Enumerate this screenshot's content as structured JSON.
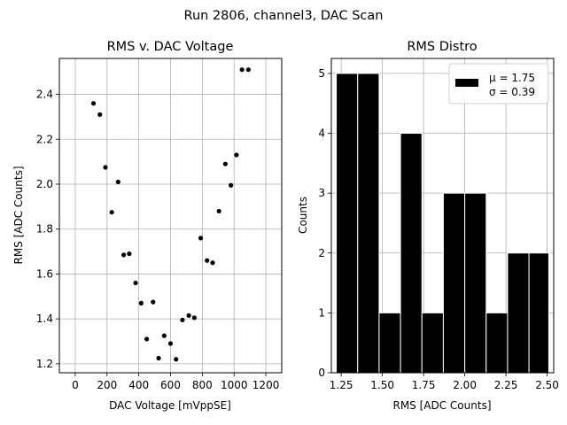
{
  "suptitle": "Run 2806, channel3, DAC Scan",
  "chart_data": [
    {
      "type": "scatter",
      "title": "RMS v. DAC Voltage",
      "xlabel": "DAC Voltage [mVppSE]",
      "ylabel": "RMS [ADC Counts]",
      "xlim": [
        -100,
        1300
      ],
      "ylim": [
        1.16,
        2.56
      ],
      "xticks": [
        0,
        200,
        400,
        600,
        800,
        1000,
        1200
      ],
      "xtick_labels": [
        "0",
        "200",
        "400",
        "600",
        "800",
        "1000",
        "1200"
      ],
      "yticks": [
        1.2,
        1.4,
        1.6,
        1.8,
        2.0,
        2.2,
        2.4
      ],
      "ytick_labels": [
        "1.2",
        "1.4",
        "1.6",
        "1.8",
        "2.0",
        "2.2",
        "2.4"
      ],
      "grid": true,
      "marker_color": "#000000",
      "x": [
        115,
        155,
        190,
        230,
        270,
        305,
        340,
        380,
        415,
        450,
        490,
        525,
        560,
        600,
        635,
        675,
        715,
        750,
        790,
        830,
        865,
        905,
        945,
        980,
        1015,
        1050,
        1090
      ],
      "y": [
        2.36,
        2.31,
        2.075,
        1.875,
        2.01,
        1.685,
        1.69,
        1.56,
        1.47,
        1.31,
        1.475,
        1.225,
        1.325,
        1.29,
        1.22,
        1.395,
        1.415,
        1.405,
        1.76,
        1.66,
        1.65,
        1.88,
        2.09,
        1.995,
        2.13,
        2.51,
        2.51
      ]
    },
    {
      "type": "bar",
      "title": "RMS Distro",
      "xlabel": "RMS [ADC Counts]",
      "ylabel": "Counts",
      "xlim": [
        1.19,
        2.54
      ],
      "ylim": [
        0,
        5.25
      ],
      "xticks": [
        1.25,
        1.5,
        1.75,
        2.0,
        2.25,
        2.5
      ],
      "xtick_labels": [
        "1.25",
        "1.50",
        "1.75",
        "2.00",
        "2.25",
        "2.50"
      ],
      "yticks": [
        0,
        1,
        2,
        3,
        4,
        5
      ],
      "ytick_labels": [
        "0",
        "1",
        "2",
        "3",
        "4",
        "5"
      ],
      "grid": true,
      "bar_color": "#000000",
      "bar_edge_color": "#ffffff",
      "bin_edges": [
        1.22,
        1.35,
        1.48,
        1.61,
        1.74,
        1.87,
        2.0,
        2.13,
        2.26,
        2.39,
        2.51
      ],
      "counts": [
        5,
        5,
        1,
        4,
        1,
        3,
        3,
        1,
        2,
        2
      ],
      "legend": {
        "placement": "top-right",
        "entries": [
          "μ = 1.75",
          "σ = 0.39"
        ]
      }
    }
  ]
}
